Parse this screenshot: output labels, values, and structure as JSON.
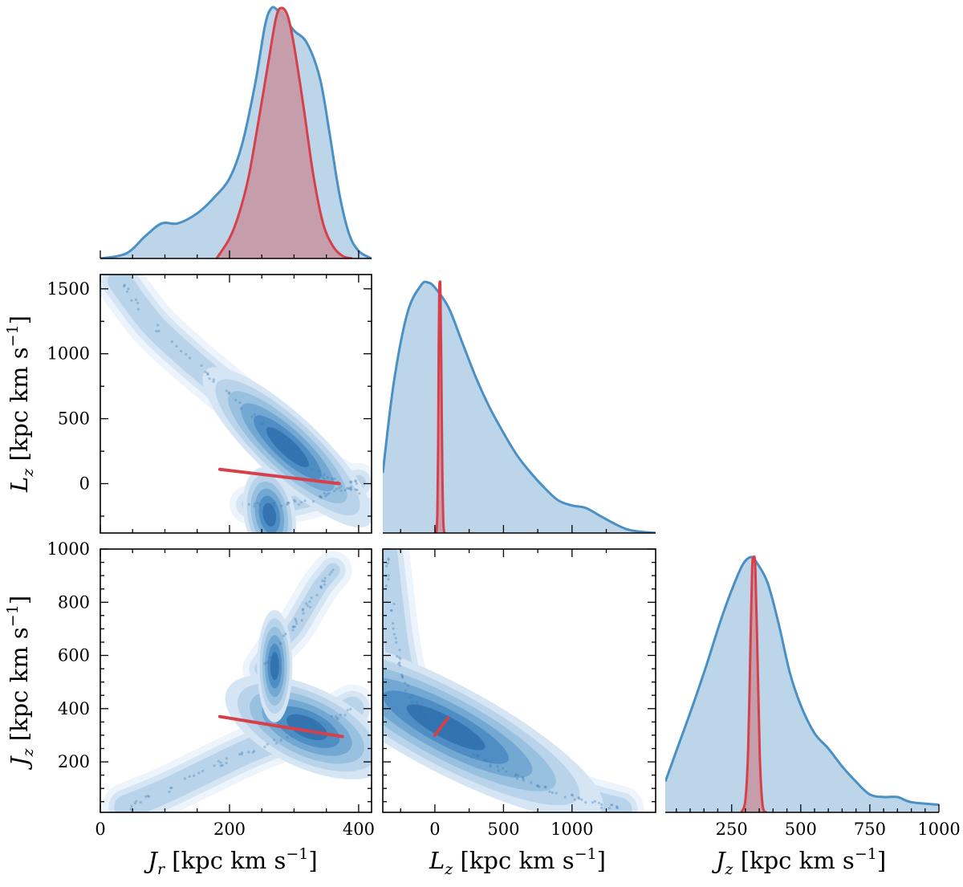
{
  "chart_data": {
    "type": "corner",
    "description_colors": {
      "blue": "#4a90c4",
      "blue_fill": "#bcd5e8",
      "red": "#d6404a",
      "red_fill": "#c69aa6"
    },
    "axes": {
      "Jr": {
        "range": [
          0,
          420
        ],
        "ticks": [
          0,
          200,
          400
        ],
        "tick_labels": [
          "0",
          "200",
          "400"
        ]
      },
      "Lz": {
        "range": [
          -380,
          1610
        ],
        "ticks": [
          -250,
          0,
          250,
          500,
          750,
          1000,
          1250,
          1500
        ],
        "tick_labels": [
          "0",
          "500",
          "1000",
          "1500"
        ],
        "tick_values": [
          0,
          500,
          1000,
          1500
        ],
        "x_tick_labels": [
          "0",
          "500",
          "1000"
        ],
        "x_tick_values": [
          0,
          500,
          1000
        ]
      },
      "Jz": {
        "range": [
          10,
          1000
        ],
        "tick_values": [
          200,
          400,
          600,
          800,
          1000
        ],
        "tick_labels": [
          "200",
          "400",
          "600",
          "800",
          "1000"
        ],
        "x_tick_values": [
          250,
          500,
          750,
          1000
        ],
        "x_tick_labels": [
          "250",
          "500",
          "750",
          "1000"
        ]
      }
    },
    "labels": {
      "xlabel_jr": {
        "sym": "J",
        "sub": "r",
        "unit": " [kpc km s",
        "sup": "−1",
        "close": "]"
      },
      "xlabel_lz": {
        "sym": "L",
        "sub": "z",
        "unit": " [kpc km s",
        "sup": "−1",
        "close": "]"
      },
      "xlabel_jz": {
        "sym": "J",
        "sub": "z",
        "unit": " [kpc km s",
        "sup": "−1",
        "close": "]"
      },
      "ylabel_lz": {
        "sym": "L",
        "sub": "z",
        "unit": " [kpc km s",
        "sup": "−1",
        "close": "]"
      },
      "ylabel_jz": {
        "sym": "J",
        "sub": "z",
        "unit": " [kpc km s",
        "sup": "−1",
        "close": "]"
      }
    },
    "marginals": {
      "Jr": {
        "blue": {
          "x": [
            0,
            40,
            70,
            95,
            120,
            150,
            175,
            200,
            220,
            240,
            255,
            265,
            275,
            285,
            300,
            320,
            340,
            355,
            370,
            385,
            400,
            420
          ],
          "y": [
            0.0,
            0.02,
            0.09,
            0.14,
            0.14,
            0.18,
            0.24,
            0.32,
            0.46,
            0.7,
            0.93,
            1.0,
            0.99,
            0.96,
            0.91,
            0.86,
            0.72,
            0.5,
            0.26,
            0.1,
            0.03,
            0.0
          ]
        },
        "red": {
          "x": [
            180,
            200,
            215,
            230,
            245,
            260,
            272,
            280,
            290,
            300,
            315,
            330,
            345,
            360,
            375,
            390
          ],
          "y": [
            0.0,
            0.08,
            0.18,
            0.33,
            0.55,
            0.78,
            0.96,
            1.0,
            0.97,
            0.85,
            0.6,
            0.33,
            0.14,
            0.05,
            0.01,
            0.0
          ]
        }
      },
      "Lz": {
        "blue": {
          "x": [
            -380,
            -300,
            -200,
            -100,
            -50,
            0,
            100,
            200,
            300,
            400,
            500,
            600,
            700,
            800,
            900,
            1000,
            1100,
            1200,
            1300,
            1400,
            1500,
            1610
          ],
          "y": [
            0.24,
            0.6,
            0.88,
            0.99,
            1.0,
            0.98,
            0.9,
            0.76,
            0.62,
            0.5,
            0.4,
            0.31,
            0.24,
            0.18,
            0.13,
            0.11,
            0.1,
            0.07,
            0.04,
            0.015,
            0.005,
            0.0
          ]
        },
        "red": {
          "x": [
            10,
            18,
            24,
            28,
            32,
            36,
            40,
            46,
            54,
            62,
            70
          ],
          "y": [
            0.0,
            0.08,
            0.35,
            0.75,
            0.97,
            1.0,
            0.97,
            0.7,
            0.25,
            0.04,
            0.0
          ]
        }
      },
      "Jz": {
        "blue": {
          "x": [
            10,
            60,
            110,
            160,
            210,
            250,
            290,
            320,
            340,
            380,
            420,
            460,
            500,
            550,
            600,
            650,
            700,
            750,
            800,
            850,
            900,
            1000
          ],
          "y": [
            0.12,
            0.27,
            0.42,
            0.58,
            0.75,
            0.87,
            0.97,
            1.0,
            0.98,
            0.9,
            0.74,
            0.55,
            0.42,
            0.31,
            0.25,
            0.18,
            0.12,
            0.07,
            0.06,
            0.06,
            0.04,
            0.03
          ]
        },
        "red": {
          "x": [
            285,
            300,
            310,
            318,
            324,
            330,
            336,
            344,
            352,
            362,
            375
          ],
          "y": [
            0.0,
            0.05,
            0.25,
            0.65,
            0.95,
            1.0,
            0.95,
            0.6,
            0.22,
            0.03,
            0.0
          ]
        }
      }
    },
    "joints": {
      "Lz_vs_Jr": {
        "density_blobs": [
          {
            "cx": 290,
            "cy": 280,
            "rx": 40,
            "ry": 140,
            "rot": -47
          },
          {
            "cx": 262,
            "cy": -240,
            "rx": 32,
            "ry": 60,
            "rot": -10
          }
        ],
        "band": [
          [
            30,
            1560
          ],
          [
            80,
            1230
          ],
          [
            140,
            950
          ],
          [
            200,
            700
          ],
          [
            250,
            480
          ],
          [
            300,
            250
          ],
          [
            340,
            90
          ],
          [
            370,
            0
          ],
          [
            400,
            -60
          ]
        ],
        "lower_band": [
          [
            230,
            -160
          ],
          [
            260,
            -180
          ],
          [
            300,
            -150
          ],
          [
            340,
            -100
          ],
          [
            370,
            -40
          ],
          [
            400,
            10
          ]
        ],
        "red_line": [
          [
            185,
            110
          ],
          [
            370,
            0
          ]
        ]
      },
      "Jz_vs_Jr": {
        "density_blobs": [
          {
            "cx": 320,
            "cy": 330,
            "rx": 50,
            "ry": 110,
            "rot": -65
          },
          {
            "cx": 270,
            "cy": 560,
            "rx": 22,
            "ry": 70,
            "rot": 0
          }
        ],
        "band": [
          [
            40,
            30
          ],
          [
            100,
            90
          ],
          [
            160,
            160
          ],
          [
            220,
            230
          ],
          [
            270,
            280
          ],
          [
            320,
            320
          ],
          [
            360,
            360
          ],
          [
            390,
            400
          ]
        ],
        "upper_band": [
          [
            250,
            550
          ],
          [
            270,
            620
          ],
          [
            300,
            700
          ],
          [
            320,
            780
          ],
          [
            340,
            860
          ],
          [
            360,
            920
          ]
        ],
        "red_line": [
          [
            185,
            370
          ],
          [
            375,
            295
          ]
        ]
      },
      "Jz_vs_Lz": {
        "density_blobs": [
          {
            "cx": 80,
            "cy": 330,
            "rx": 220,
            "ry": 55,
            "rot": 28
          }
        ],
        "band": [
          [
            -360,
            980
          ],
          [
            -320,
            800
          ],
          [
            -280,
            640
          ],
          [
            -230,
            520
          ],
          [
            -150,
            430
          ],
          [
            -50,
            370
          ],
          [
            50,
            320
          ],
          [
            200,
            260
          ],
          [
            400,
            190
          ],
          [
            600,
            140
          ],
          [
            800,
            100
          ],
          [
            1000,
            70
          ],
          [
            1200,
            40
          ],
          [
            1350,
            20
          ]
        ],
        "red_line": [
          [
            0,
            300
          ],
          [
            95,
            365
          ]
        ]
      }
    }
  }
}
